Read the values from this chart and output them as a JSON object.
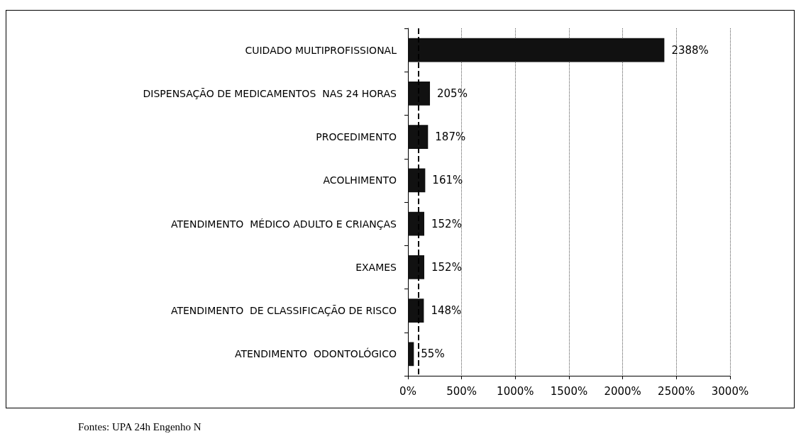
{
  "chart_data": {
    "type": "bar",
    "orientation": "horizontal",
    "categories": [
      "CUIDADO MULTIPROFISSIONAL",
      "DISPENSAÇÃO DE MEDICAMENTOS  NAS 24 HORAS",
      "PROCEDIMENTO",
      "ACOLHIMENTO",
      "ATENDIMENTO  MÉDICO ADULTO E CRIANÇAS",
      "EXAMES",
      "ATENDIMENTO  DE CLASSIFICAÇÃO DE RISCO",
      "ATENDIMENTO  ODONTOLÓGICO"
    ],
    "values": [
      2388,
      205,
      187,
      161,
      152,
      152,
      148,
      55
    ],
    "value_labels": [
      "2388%",
      "205%",
      "187%",
      "161%",
      "152%",
      "152%",
      "148%",
      "55%"
    ],
    "color": "#111111",
    "xlim": [
      0,
      3000
    ],
    "xticks": [
      {
        "value": 0,
        "label": "0%"
      },
      {
        "value": 500,
        "label": "500%"
      },
      {
        "value": 1000,
        "label": "1000%"
      },
      {
        "value": 1500,
        "label": "1500%"
      },
      {
        "value": 2000,
        "label": "2000%"
      },
      {
        "value": 2500,
        "label": "2500%"
      },
      {
        "value": 3000,
        "label": "3000%"
      }
    ],
    "grid": "x",
    "ref_lines": [
      {
        "axis": "x",
        "value": 100,
        "line_style": "dashed",
        "color": "#000000"
      }
    ],
    "annotations": [
      "Fontes: UPA 24h Engenho N"
    ]
  }
}
